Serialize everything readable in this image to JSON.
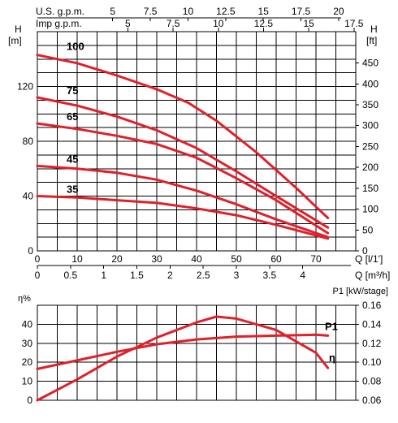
{
  "chart_data": [
    {
      "type": "line",
      "top_axes": [
        {
          "label": "U.S. g.p.m.",
          "ticks": [
            "5",
            "7.5",
            "10",
            "12.5",
            "15",
            "17.5",
            "20"
          ],
          "values": [
            5,
            7.5,
            10,
            12.5,
            15,
            17.5,
            20
          ]
        },
        {
          "label": "Imp g.p.m.",
          "ticks": [
            "5",
            "7.5",
            "10",
            "12.5",
            "15",
            "17.5"
          ],
          "values": [
            5,
            7.5,
            10,
            12.5,
            15,
            17.5
          ]
        }
      ],
      "ylabel_left": [
        "H",
        "[m]"
      ],
      "ylabel_right": [
        "H",
        "[ft]"
      ],
      "ylim": [
        0,
        160
      ],
      "y_ticks_left": [
        "0",
        "40",
        "80",
        "120"
      ],
      "y_ticks_left_values": [
        0,
        40,
        80,
        120
      ],
      "y_ticks_right": [
        "0",
        "50",
        "100",
        "150",
        "200",
        "250",
        "300",
        "350",
        "400",
        "450"
      ],
      "y_ticks_right_values": [
        0,
        50,
        100,
        150,
        200,
        250,
        300,
        350,
        400,
        450
      ],
      "xlabel_1": "Q [l/1']",
      "xlabel_2": "Q [m³/h]",
      "x_ticks_1": [
        "0",
        "10",
        "20",
        "30",
        "40",
        "50",
        "60",
        "70"
      ],
      "x_ticks_1_values": [
        0,
        10,
        20,
        30,
        40,
        50,
        60,
        70
      ],
      "x_ticks_2": [
        "0",
        "0.5",
        "1",
        "1.5",
        "2",
        "2.5",
        "3",
        "3.5",
        "4"
      ],
      "x_ticks_2_values": [
        0,
        0.5,
        1,
        1.5,
        2,
        2.5,
        3,
        3.5,
        4
      ],
      "xlim": [
        0,
        80
      ],
      "grid": true,
      "series": [
        {
          "name": "100",
          "x": [
            0,
            10,
            20,
            30,
            38,
            45,
            55,
            65,
            73
          ],
          "y": [
            143,
            137,
            128,
            118,
            108,
            95,
            72,
            46,
            24
          ]
        },
        {
          "name": "75",
          "x": [
            0,
            10,
            20,
            30,
            40,
            50,
            60,
            73
          ],
          "y": [
            112,
            106,
            98,
            88,
            75,
            58,
            40,
            17
          ]
        },
        {
          "name": "65",
          "x": [
            0,
            10,
            20,
            30,
            40,
            50,
            60,
            73
          ],
          "y": [
            93,
            89,
            84,
            78,
            68,
            53,
            37,
            13
          ]
        },
        {
          "name": "45",
          "x": [
            0,
            10,
            20,
            30,
            40,
            50,
            60,
            73
          ],
          "y": [
            62,
            60,
            57,
            52,
            44,
            34,
            23,
            10
          ]
        },
        {
          "name": "35",
          "x": [
            0,
            10,
            20,
            30,
            40,
            50,
            60,
            73
          ],
          "y": [
            40,
            39,
            37,
            35,
            31,
            26,
            19,
            9
          ]
        }
      ]
    },
    {
      "type": "line",
      "ylabel_left": "η%",
      "ylabel_right": "P1 [kW/stage]",
      "y_ticks_left": [
        "0",
        "10",
        "20",
        "30",
        "40"
      ],
      "y_ticks_left_values": [
        0,
        10,
        20,
        30,
        40
      ],
      "ylim_left": [
        0,
        50
      ],
      "y_ticks_right": [
        "0.06",
        "0.08",
        "0.10",
        "0.12",
        "0.14",
        "0.16"
      ],
      "y_ticks_right_values": [
        0.06,
        0.08,
        0.1,
        0.12,
        0.14,
        0.16
      ],
      "ylim_right": [
        0.06,
        0.16
      ],
      "xlim": [
        0,
        80
      ],
      "grid": true,
      "series": [
        {
          "name": "η",
          "axis": "left",
          "x": [
            0,
            10,
            20,
            30,
            40,
            45,
            50,
            60,
            70,
            73
          ],
          "y": [
            0,
            11,
            23,
            33,
            41,
            44,
            43,
            37,
            25,
            17
          ]
        },
        {
          "name": "P1",
          "axis": "right",
          "x": [
            0,
            10,
            20,
            30,
            40,
            50,
            60,
            70,
            73
          ],
          "y": [
            0.093,
            0.102,
            0.111,
            0.119,
            0.124,
            0.127,
            0.128,
            0.129,
            0.128
          ]
        }
      ]
    }
  ]
}
